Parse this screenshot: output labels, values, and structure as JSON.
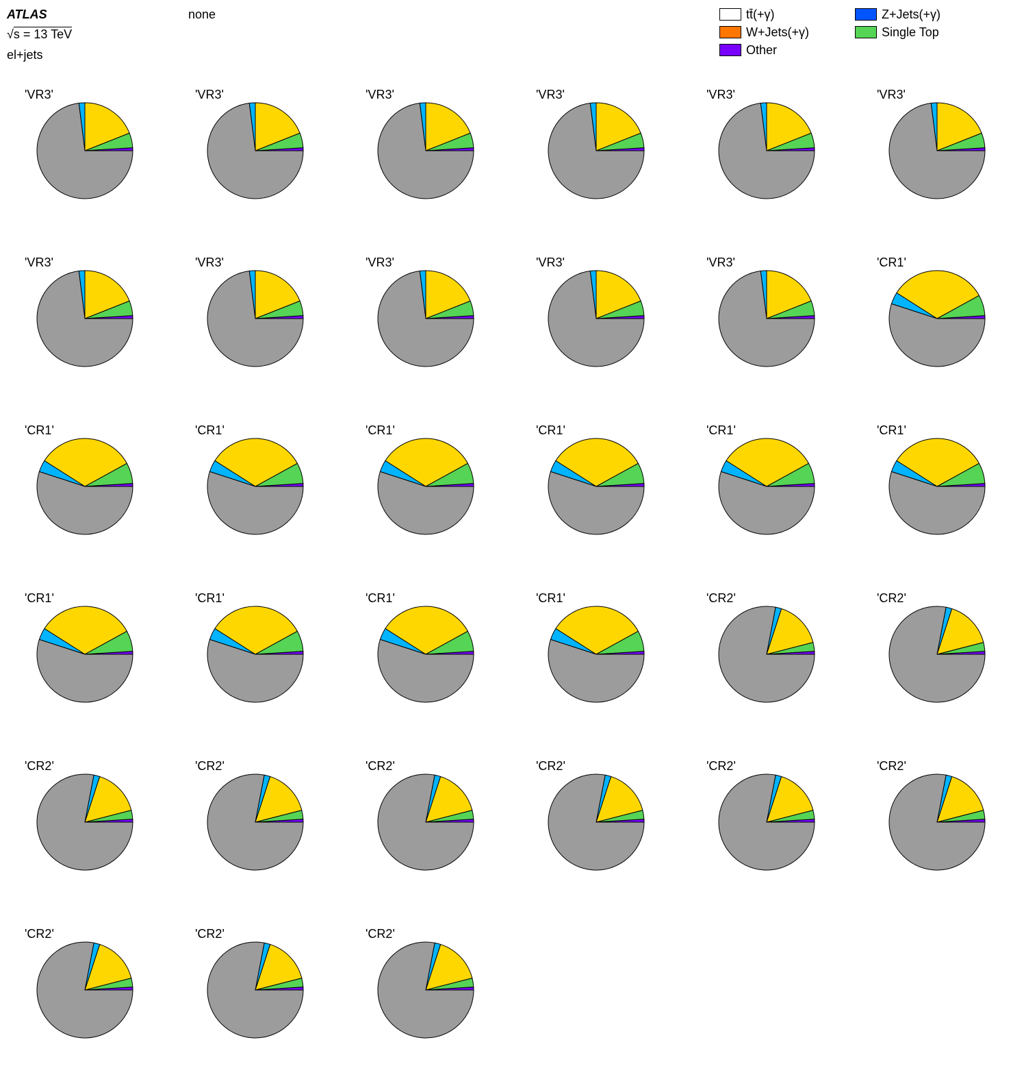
{
  "header": {
    "experiment": "ATLAS",
    "sqrt_symbol": "√",
    "energy": "s = 13 TeV",
    "channel": "el+jets",
    "normalization": "none"
  },
  "legend": [
    {
      "label": "tt̄(+γ)",
      "color": "#ffffff"
    },
    {
      "label": "Z+Jets(+γ)",
      "color": "#0055ff"
    },
    {
      "label": "W+Jets(+γ)",
      "color": "#ff7700"
    },
    {
      "label": "Single Top",
      "color": "#55d455"
    },
    {
      "label": "Other",
      "color": "#7700ff"
    }
  ],
  "chart_data": {
    "type": "pie",
    "slice_order": [
      "Other",
      "Single Top",
      "yellow",
      "light blue",
      "grey"
    ],
    "slice_colors": [
      "#7700ff",
      "#55d455",
      "#ffd700",
      "#00b4ff",
      "#9c9c9c"
    ],
    "region_fractions": {
      "VR3": [
        0.01,
        0.05,
        0.19,
        0.02,
        0.73
      ],
      "CR1": [
        0.01,
        0.07,
        0.33,
        0.04,
        0.55
      ],
      "CR2": [
        0.01,
        0.03,
        0.16,
        0.02,
        0.78
      ]
    },
    "pies": [
      "VR3",
      "VR3",
      "VR3",
      "VR3",
      "VR3",
      "VR3",
      "VR3",
      "VR3",
      "VR3",
      "VR3",
      "VR3",
      "CR1",
      "CR1",
      "CR1",
      "CR1",
      "CR1",
      "CR1",
      "CR1",
      "CR1",
      "CR1",
      "CR1",
      "CR1",
      "CR2",
      "CR2",
      "CR2",
      "CR2",
      "CR2",
      "CR2",
      "CR2",
      "CR2",
      "CR2",
      "CR2",
      "CR2"
    ],
    "title_format": "'{region}'"
  }
}
